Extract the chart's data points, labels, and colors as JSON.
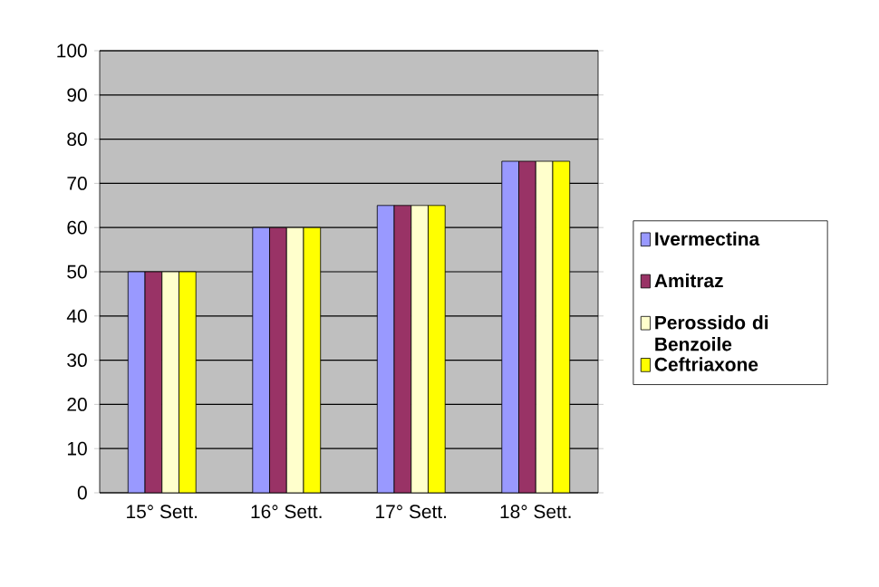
{
  "chart_data": {
    "type": "bar",
    "categories": [
      "15° Sett.",
      "16° Sett.",
      "17° Sett.",
      "18° Sett."
    ],
    "series": [
      {
        "name": "Ivermectina",
        "color": "#9999ff",
        "values": [
          50,
          60,
          65,
          75
        ]
      },
      {
        "name": "Amitraz",
        "color": "#993366",
        "values": [
          50,
          60,
          65,
          75
        ]
      },
      {
        "name": "Perossido di Benzoile",
        "color": "#ffffcc",
        "values": [
          50,
          60,
          65,
          75
        ]
      },
      {
        "name": "Ceftriaxone",
        "color": "#ffff00",
        "values": [
          50,
          60,
          65,
          75
        ]
      }
    ],
    "ylim": [
      0,
      100
    ],
    "yticks": [
      0,
      10,
      20,
      30,
      40,
      50,
      60,
      70,
      80,
      90,
      100
    ],
    "grid": "y",
    "legend": "right"
  }
}
